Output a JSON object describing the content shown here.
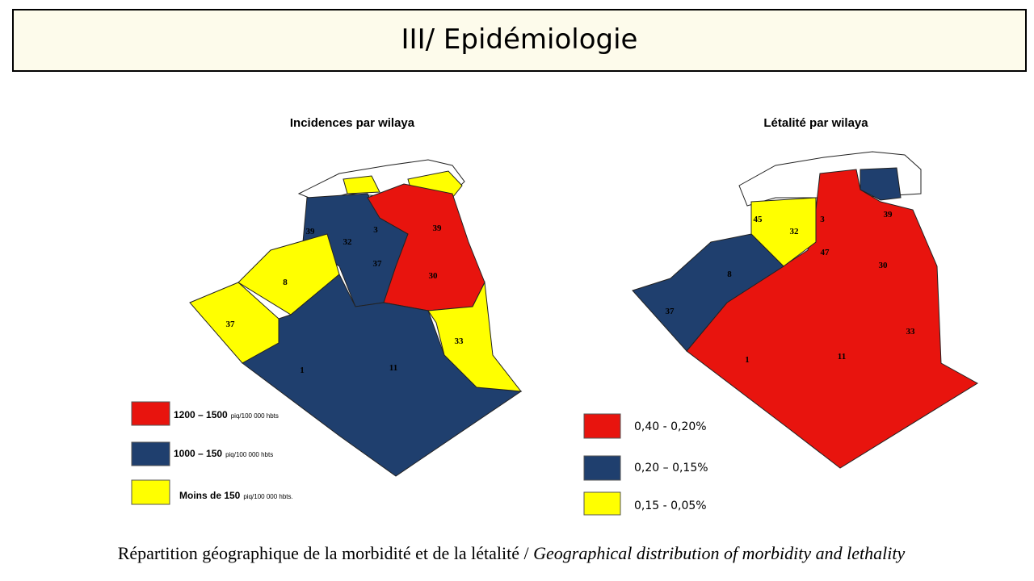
{
  "header": {
    "title": "III/ Epidémiologie"
  },
  "maps": [
    {
      "title": "Incidences par wilaya",
      "regions": [
        "39",
        "32",
        "3",
        "39",
        "37",
        "30",
        "8",
        "37",
        "33",
        "1",
        "11"
      ],
      "legend": [
        {
          "label": "1200 – 1500",
          "unit": "piq/100 000 hbts",
          "color": "#e8140e"
        },
        {
          "label": "1000 – 150",
          "unit": "piq/100 000 hbts",
          "color": "#1f3f6e"
        },
        {
          "label": "Moins de 150",
          "unit": "piq/100 000 hbts.",
          "color": "#ffff00"
        }
      ]
    },
    {
      "title": "Létalité par wilaya",
      "regions": [
        "45",
        "32",
        "3",
        "39",
        "47",
        "30",
        "8",
        "37",
        "33",
        "1",
        "11"
      ],
      "legend": [
        {
          "label": "0,40 - 0,20%",
          "color": "#e8140e"
        },
        {
          "label": "0,20 – 0,15%",
          "color": "#1f3f6e"
        },
        {
          "label": "0,15 - 0,05%",
          "color": "#ffff00"
        }
      ]
    }
  ],
  "caption": {
    "text": "Répartition géographique de la morbidité et de la létalité / ",
    "italic": "Geographical distribution of morbidity and lethality"
  }
}
